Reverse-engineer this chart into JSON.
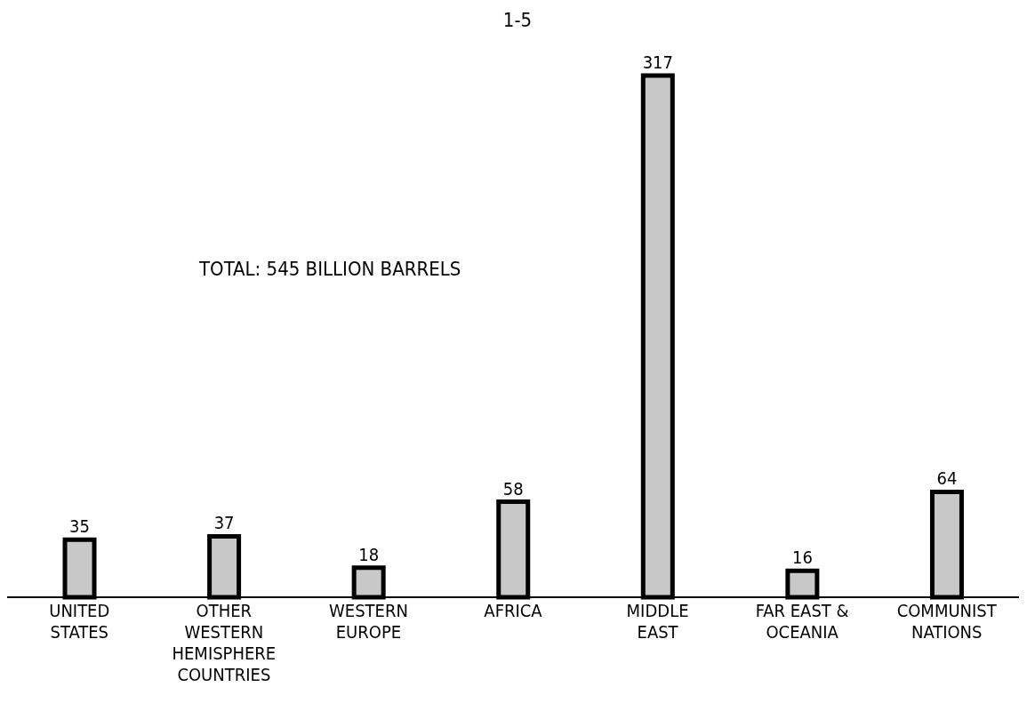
{
  "chart_data": {
    "type": "bar",
    "categories": [
      "UNITED STATES",
      "OTHER WESTERN HEMISPHERE COUNTRIES",
      "WESTERN EUROPE",
      "AFRICA",
      "MIDDLE EAST",
      "FAR EAST & OCEANIA",
      "COMMUNIST NATIONS"
    ],
    "values": [
      35,
      37,
      18,
      58,
      317,
      16,
      64
    ],
    "color": "#c8c8c8",
    "data_labels": true,
    "annotations": [
      "1-5",
      "TOTAL: 545 BILLION BARRELS"
    ]
  }
}
